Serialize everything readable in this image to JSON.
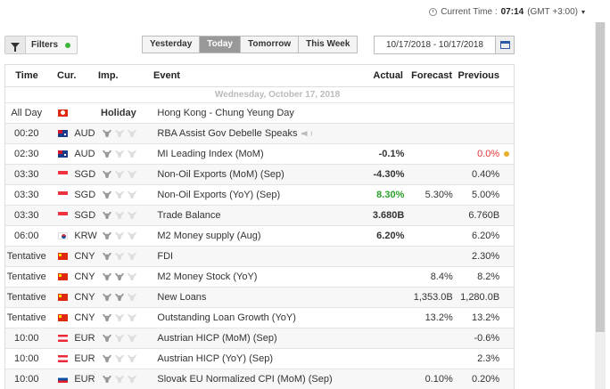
{
  "top": {
    "label": "Current Time :",
    "time": "07:14",
    "tz": "(GMT +3:00)"
  },
  "filters": {
    "label": "Filters"
  },
  "tabs": [
    {
      "label": "Yesterday",
      "active": false
    },
    {
      "label": "Today",
      "active": true
    },
    {
      "label": "Tomorrow",
      "active": false
    },
    {
      "label": "This Week",
      "active": false
    }
  ],
  "date_range": "10/17/2018 - 10/17/2018",
  "columns": {
    "time": "Time",
    "cur": "Cur.",
    "imp": "Imp.",
    "event": "Event",
    "actual": "Actual",
    "forecast": "Forecast",
    "previous": "Previous"
  },
  "day_header": "Wednesday, October 17, 2018",
  "rows": [
    {
      "time": "All Day",
      "flag": "hk",
      "cur": "",
      "imp": "Holiday",
      "event": "Hong Kong - Chung Yeung Day",
      "actual": "",
      "forecast": "",
      "previous": "",
      "bulls": 0
    },
    {
      "time": "00:20",
      "flag": "au",
      "cur": "AUD",
      "imp": "",
      "event": "RBA Assist Gov Debelle Speaks",
      "actual": "",
      "forecast": "",
      "previous": "",
      "bulls": 1,
      "speaker": true
    },
    {
      "time": "02:30",
      "flag": "au",
      "cur": "AUD",
      "imp": "",
      "event": "MI Leading Index (MoM)",
      "actual": "-0.1%",
      "forecast": "",
      "previous": "0.0%",
      "bulls": 1,
      "prevColor": "red",
      "dot": true
    },
    {
      "time": "03:30",
      "flag": "sg",
      "cur": "SGD",
      "imp": "",
      "event": "Non-Oil Exports (MoM) (Sep)",
      "actual": "-4.30%",
      "forecast": "",
      "previous": "0.40%",
      "bulls": 1
    },
    {
      "time": "03:30",
      "flag": "sg",
      "cur": "SGD",
      "imp": "",
      "event": "Non-Oil Exports (YoY) (Sep)",
      "actual": "8.30%",
      "forecast": "5.30%",
      "previous": "5.00%",
      "bulls": 1,
      "actColor": "green"
    },
    {
      "time": "03:30",
      "flag": "sg",
      "cur": "SGD",
      "imp": "",
      "event": "Trade Balance",
      "actual": "3.680B",
      "forecast": "",
      "previous": "6.760B",
      "bulls": 1
    },
    {
      "time": "06:00",
      "flag": "kr",
      "cur": "KRW",
      "imp": "",
      "event": "M2 Money supply (Aug)",
      "actual": "6.20%",
      "forecast": "",
      "previous": "6.20%",
      "bulls": 1
    },
    {
      "time": "Tentative",
      "flag": "cn",
      "cur": "CNY",
      "imp": "",
      "event": "FDI",
      "actual": "",
      "forecast": "",
      "previous": "2.30%",
      "bulls": 1
    },
    {
      "time": "Tentative",
      "flag": "cn",
      "cur": "CNY",
      "imp": "",
      "event": "M2 Money Stock (YoY)",
      "actual": "",
      "forecast": "8.4%",
      "previous": "8.2%",
      "bulls": 2
    },
    {
      "time": "Tentative",
      "flag": "cn",
      "cur": "CNY",
      "imp": "",
      "event": "New Loans",
      "actual": "",
      "forecast": "1,353.0B",
      "previous": "1,280.0B",
      "bulls": 2
    },
    {
      "time": "Tentative",
      "flag": "cn",
      "cur": "CNY",
      "imp": "",
      "event": "Outstanding Loan Growth (YoY)",
      "actual": "",
      "forecast": "13.2%",
      "previous": "13.2%",
      "bulls": 1
    },
    {
      "time": "10:00",
      "flag": "at",
      "cur": "EUR",
      "imp": "",
      "event": "Austrian HICP (MoM) (Sep)",
      "actual": "",
      "forecast": "",
      "previous": "-0.6%",
      "bulls": 1
    },
    {
      "time": "10:00",
      "flag": "at",
      "cur": "EUR",
      "imp": "",
      "event": "Austrian HICP (YoY) (Sep)",
      "actual": "",
      "forecast": "",
      "previous": "2.3%",
      "bulls": 1
    },
    {
      "time": "10:00",
      "flag": "sk",
      "cur": "EUR",
      "imp": "",
      "event": "Slovak EU Normalized CPI (MoM) (Sep)",
      "actual": "",
      "forecast": "0.10%",
      "previous": "0.20%",
      "bulls": 1
    }
  ],
  "colors": {
    "green": "#2ba02b",
    "red": "#e8323c",
    "accent_dot": "#e6b12a",
    "filter_dot": "#3cb63c"
  }
}
